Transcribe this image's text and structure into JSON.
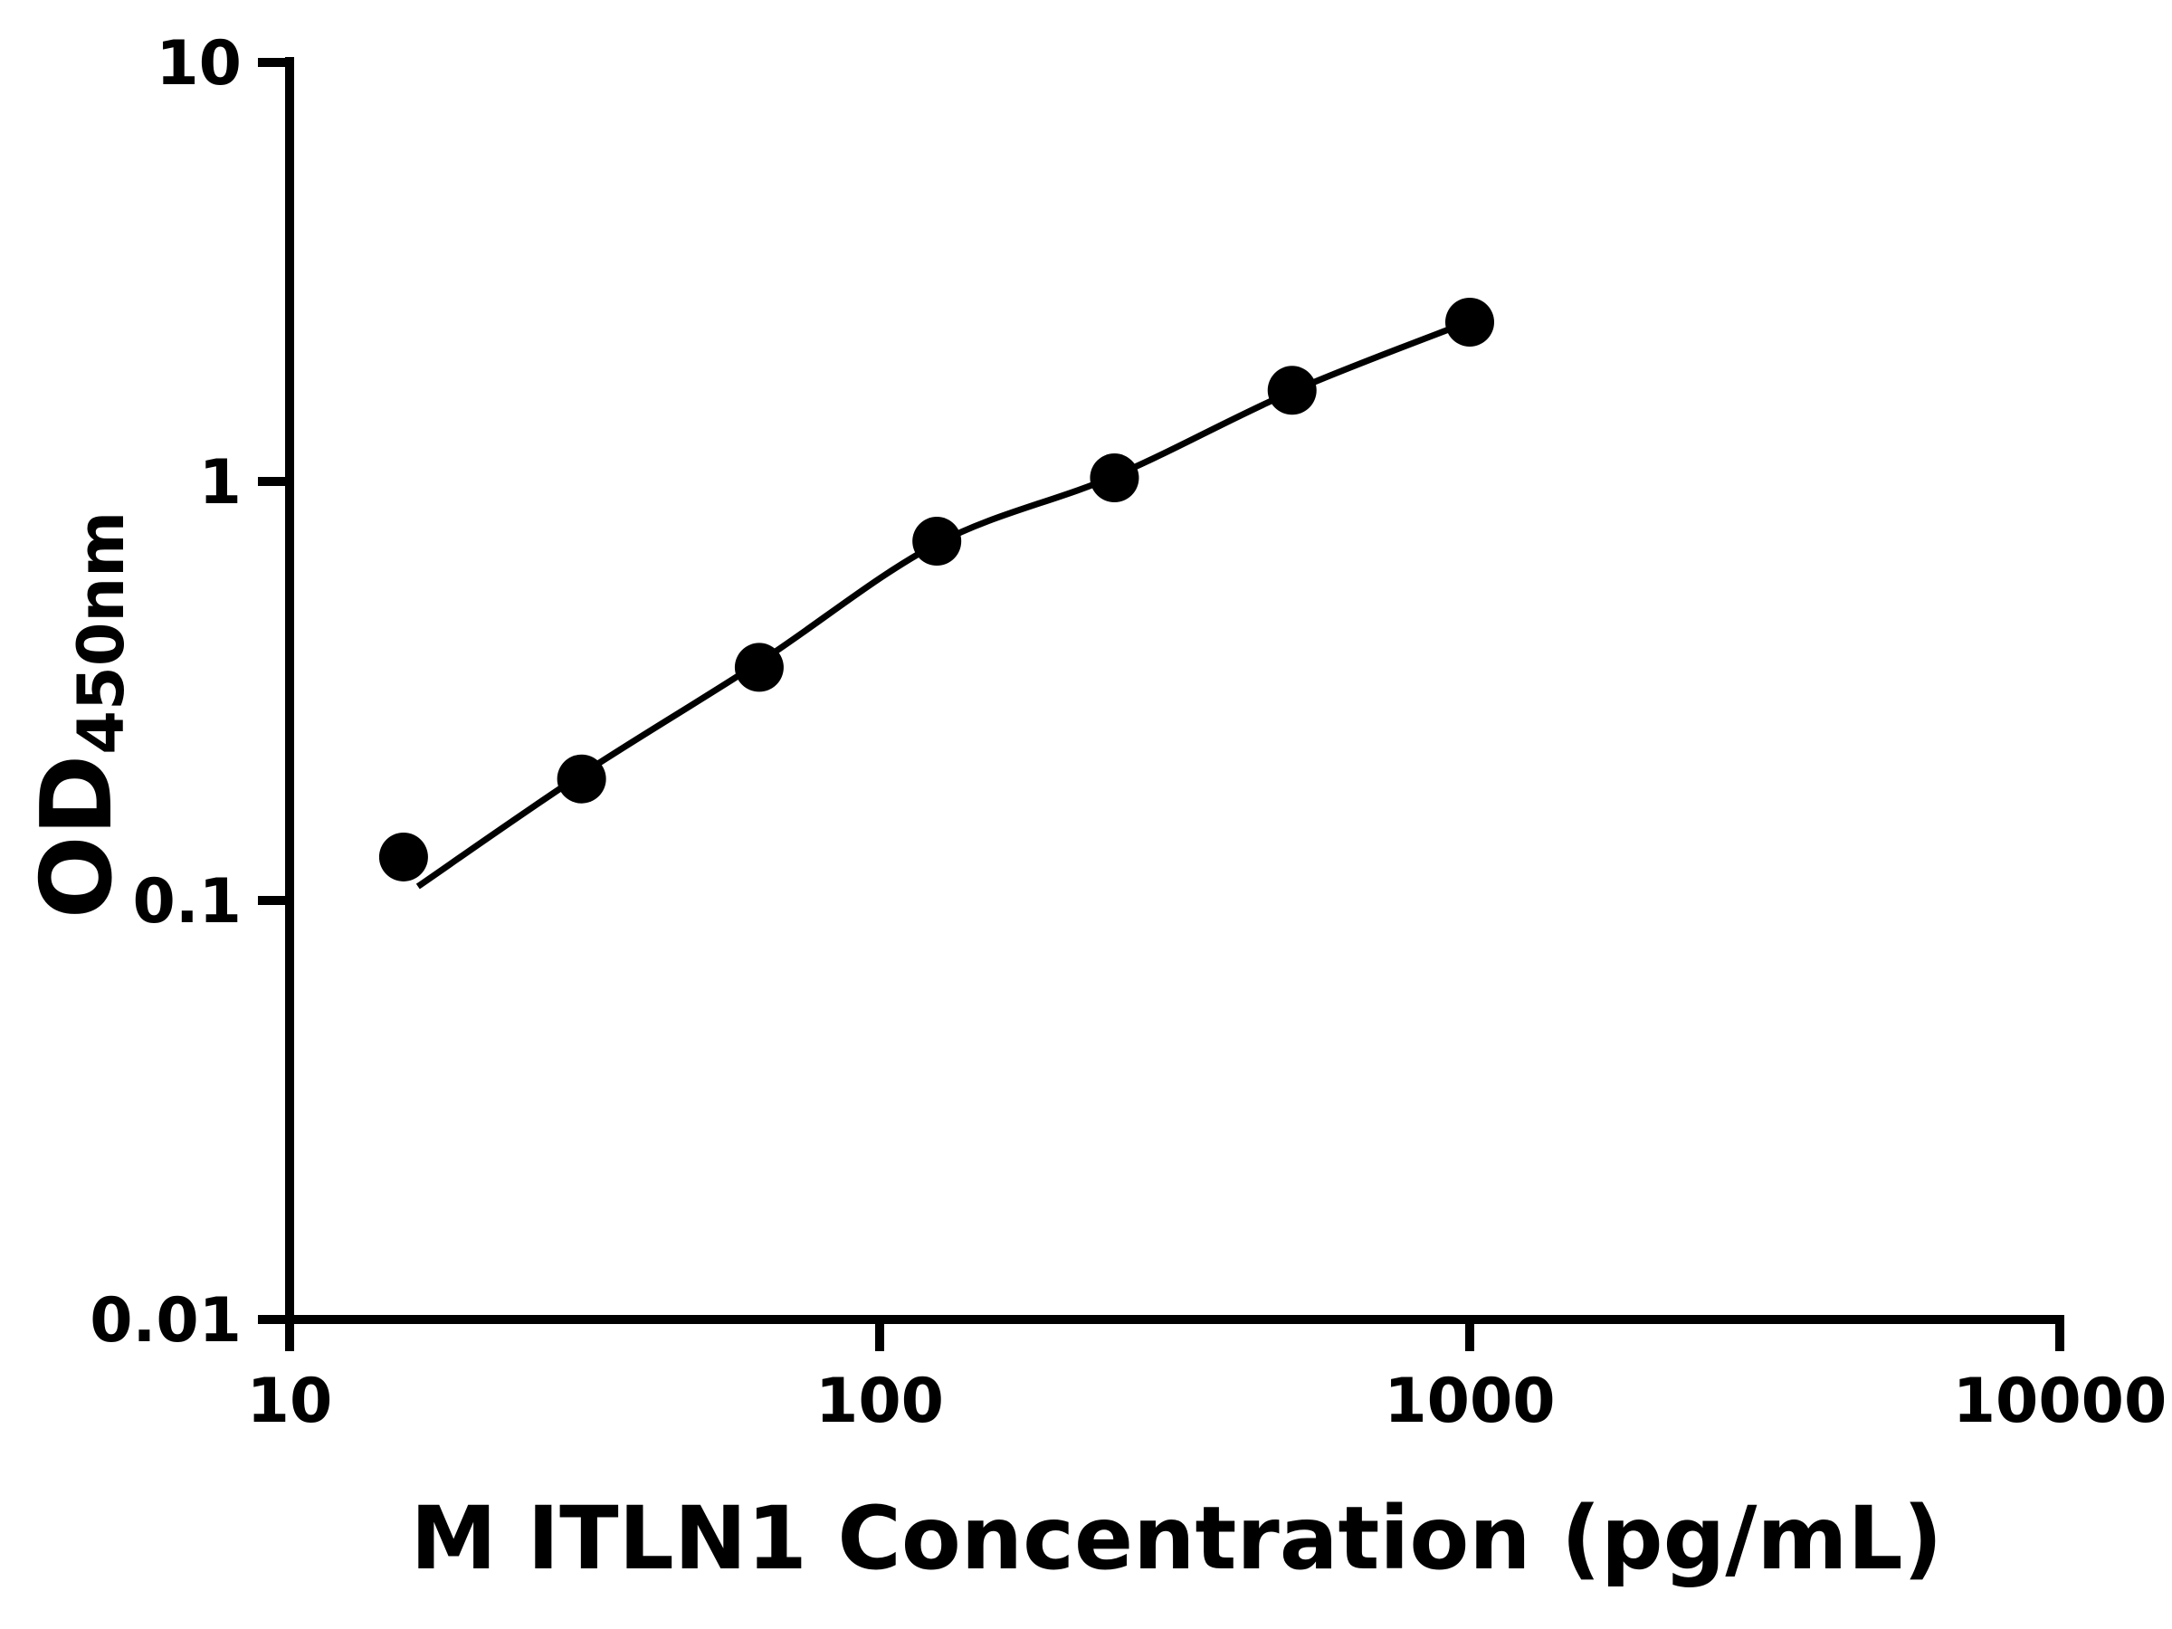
{
  "chart_data": {
    "type": "scatter",
    "title": "",
    "xlabel": "M ITLN1 Concentration (pg/mL)",
    "ylabel": "OD450nm",
    "ylabel_main": "OD",
    "ylabel_sub": "450nm",
    "x_scale": "log10",
    "y_scale": "log10",
    "xlim": [
      10,
      10000
    ],
    "ylim": [
      0.01,
      10
    ],
    "x_ticks": [
      "10",
      "100",
      "1000",
      "10000"
    ],
    "y_ticks": [
      "10",
      "1",
      "0.1",
      "0.01"
    ],
    "grid": false,
    "legend": false,
    "marker": "filled-circle",
    "marker_color": "#000000",
    "line_color": "#000000",
    "axis_color": "#000000",
    "background_color": "#ffffff",
    "points": {
      "x": [
        15.6,
        31.25,
        62.5,
        125,
        250,
        500,
        1000
      ],
      "y": [
        0.127,
        0.195,
        0.36,
        0.72,
        1.02,
        1.65,
        2.4
      ]
    },
    "fit_curve": {
      "x": [
        16.5,
        31.25,
        62.5,
        125,
        250,
        500,
        1000
      ],
      "y": [
        0.108,
        0.2,
        0.37,
        0.71,
        1.03,
        1.64,
        2.41
      ]
    }
  }
}
